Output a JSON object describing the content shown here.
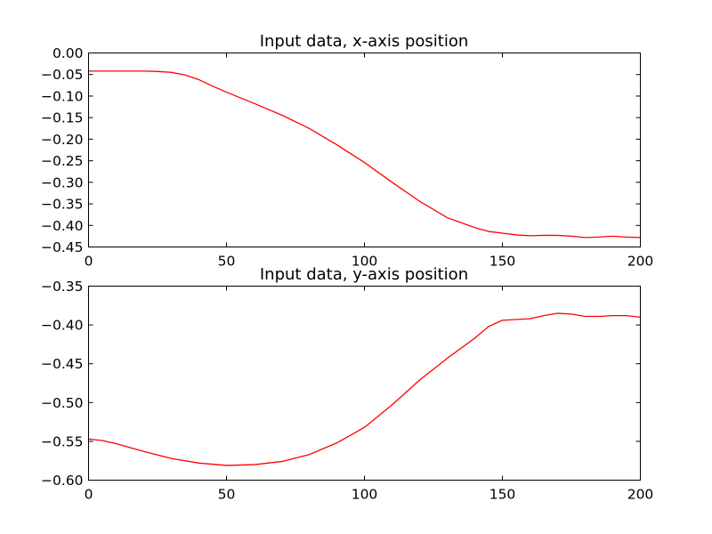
{
  "chart_data": [
    {
      "type": "line",
      "title": "Input data, x-axis position",
      "xlabel": "",
      "ylabel": "",
      "xlim": [
        0,
        200
      ],
      "ylim": [
        -0.45,
        0.0
      ],
      "xticks": [
        0,
        50,
        100,
        150,
        200
      ],
      "xtick_labels": [
        "0",
        "50",
        "100",
        "150",
        "200"
      ],
      "yticks": [
        0.0,
        -0.05,
        -0.1,
        -0.15,
        -0.2,
        -0.25,
        -0.3,
        -0.35,
        -0.4,
        -0.45
      ],
      "ytick_labels": [
        "0.00",
        "−0.05",
        "−0.10",
        "−0.15",
        "−0.20",
        "−0.25",
        "−0.30",
        "−0.35",
        "−0.40",
        "−0.45"
      ],
      "grid": false,
      "series": [
        {
          "color": "#ff0000",
          "x": [
            0,
            10,
            20,
            25,
            30,
            35,
            40,
            45,
            50,
            60,
            70,
            80,
            90,
            100,
            110,
            120,
            130,
            140,
            145,
            150,
            155,
            160,
            165,
            170,
            175,
            180,
            185,
            190,
            195,
            200
          ],
          "y": [
            -0.042,
            -0.042,
            -0.042,
            -0.043,
            -0.045,
            -0.051,
            -0.062,
            -0.077,
            -0.091,
            -0.117,
            -0.144,
            -0.175,
            -0.213,
            -0.254,
            -0.3,
            -0.344,
            -0.382,
            -0.405,
            -0.414,
            -0.418,
            -0.422,
            -0.424,
            -0.423,
            -0.423,
            -0.425,
            -0.428,
            -0.427,
            -0.425,
            -0.427,
            -0.428
          ]
        }
      ]
    },
    {
      "type": "line",
      "title": "Input data, y-axis position",
      "xlabel": "",
      "ylabel": "",
      "xlim": [
        0,
        200
      ],
      "ylim": [
        -0.6,
        -0.35
      ],
      "xticks": [
        0,
        50,
        100,
        150,
        200
      ],
      "xtick_labels": [
        "0",
        "50",
        "100",
        "150",
        "200"
      ],
      "yticks": [
        -0.35,
        -0.4,
        -0.45,
        -0.5,
        -0.55,
        -0.6
      ],
      "ytick_labels": [
        "−0.35",
        "−0.40",
        "−0.45",
        "−0.50",
        "−0.55",
        "−0.60"
      ],
      "grid": false,
      "series": [
        {
          "color": "#ff0000",
          "x": [
            0,
            5,
            10,
            20,
            30,
            40,
            50,
            60,
            70,
            80,
            90,
            100,
            110,
            120,
            130,
            140,
            145,
            150,
            155,
            160,
            165,
            170,
            175,
            180,
            185,
            190,
            195,
            200
          ],
          "y": [
            -0.547,
            -0.549,
            -0.553,
            -0.563,
            -0.572,
            -0.578,
            -0.581,
            -0.58,
            -0.576,
            -0.567,
            -0.552,
            -0.532,
            -0.503,
            -0.471,
            -0.443,
            -0.417,
            -0.402,
            -0.394,
            -0.393,
            -0.392,
            -0.388,
            -0.385,
            -0.386,
            -0.389,
            -0.389,
            -0.388,
            -0.388,
            -0.39
          ]
        }
      ]
    }
  ]
}
